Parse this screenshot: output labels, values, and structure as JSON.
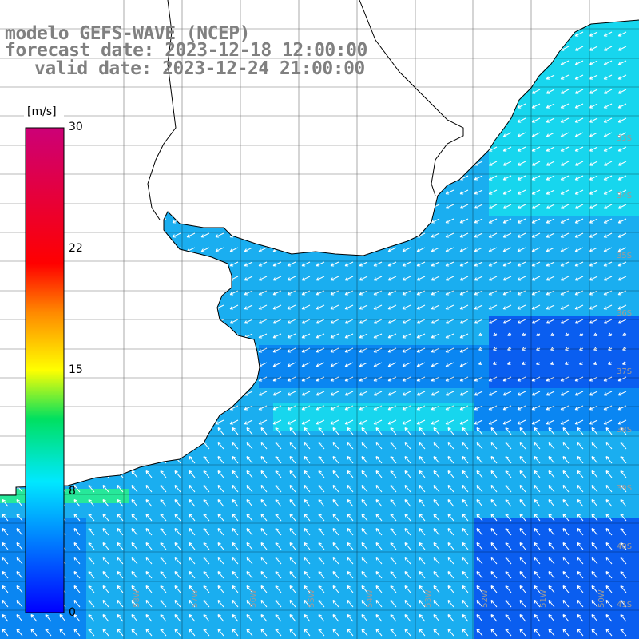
{
  "title": {
    "model": "modelo GEFS-WAVE (NCEP)",
    "forecast": "forecast date: 2023-12-18 12:00:00",
    "valid": "valid date: 2023-12-24 21:00:00"
  },
  "colorbar": {
    "unit": "[m/s]",
    "ticks": [
      "30",
      "22",
      "15",
      "8",
      "0"
    ],
    "min": 0,
    "max": 30
  },
  "grid_labels": {
    "lat": [
      "33S",
      "34S",
      "35S",
      "36S",
      "37S",
      "38S",
      "39S",
      "40S",
      "41S"
    ],
    "lon": [
      "58W",
      "57W",
      "56W",
      "55W",
      "54W",
      "53W",
      "52W",
      "51W",
      "50W"
    ]
  },
  "colors": {
    "ocean_base": "#1aaef0",
    "ocean_dark": "#0a5ef0",
    "ocean_mid": "#0a86f2",
    "ocean_light": "#17d6ee",
    "ocean_green": "#26e89a",
    "land": "#ffffff",
    "grid": "#000000",
    "arrows": "#ffffff",
    "title": "#808080"
  }
}
